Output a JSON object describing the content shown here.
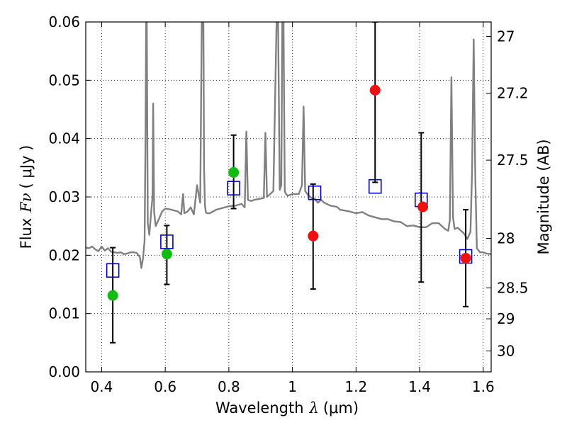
{
  "chart_data": {
    "type": "scatter",
    "xlabel": "Wavelength",
    "xlabel_symbol": "λ",
    "xlabel_unit": "(μm)",
    "ylabel": "Flux",
    "ylabel_symbol": "Fν",
    "ylabel_unit": "( μJy )",
    "ylabel_right": "Magnitude (AB)",
    "xlim": [
      0.35,
      1.625
    ],
    "ylim": [
      0.0,
      0.06
    ],
    "grid": true,
    "x_ticks": [
      0.4,
      0.6,
      0.8,
      1.0,
      1.2,
      1.4,
      1.6
    ],
    "x_tick_labels": [
      "0.4",
      "0.6",
      "0.8",
      "1",
      "1.2",
      "1.4",
      "1.6"
    ],
    "y_ticks": [
      0.0,
      0.01,
      0.02,
      0.03,
      0.04,
      0.05,
      0.06
    ],
    "y_tick_labels": [
      "0.00",
      "0.01",
      "0.02",
      "0.03",
      "0.04",
      "0.05",
      "0.06"
    ],
    "right_ticks": [
      {
        "label": "27",
        "flux": 0.0575
      },
      {
        "label": "27.2",
        "flux": 0.0478
      },
      {
        "label": "27.5",
        "flux": 0.0363
      },
      {
        "label": "28",
        "flux": 0.0229
      },
      {
        "label": "28.5",
        "flux": 0.0144
      },
      {
        "label": "29",
        "flux": 0.0091
      },
      {
        "label": "30",
        "flux": 0.0036
      }
    ],
    "series": [
      {
        "name": "model-points",
        "marker": "open-square",
        "color": "#0000cc",
        "x": [
          0.435,
          0.605,
          0.815,
          1.07,
          1.26,
          1.405,
          1.545
        ],
        "y": [
          0.0174,
          0.0223,
          0.0315,
          0.0307,
          0.0318,
          0.0295,
          0.0198
        ]
      },
      {
        "name": "detections",
        "marker": "filled-circle",
        "color": "#11bb11",
        "x": [
          0.435,
          0.605,
          0.815
        ],
        "y": [
          0.0131,
          0.0202,
          0.0342
        ]
      },
      {
        "name": "measurements",
        "marker": "filled-circle",
        "color": "#ee1111",
        "x": [
          1.065,
          1.26,
          1.41,
          1.545
        ],
        "y": [
          0.0233,
          0.0483,
          0.0283,
          0.0195
        ]
      }
    ],
    "error_bars": [
      {
        "x": 0.435,
        "low": 0.005,
        "high": 0.0213
      },
      {
        "x": 0.605,
        "low": 0.015,
        "high": 0.0251
      },
      {
        "x": 0.815,
        "low": 0.028,
        "high": 0.0406
      },
      {
        "x": 1.065,
        "low": 0.0142,
        "high": 0.0322
      },
      {
        "x": 1.26,
        "low": 0.0325,
        "high": 0.06
      },
      {
        "x": 1.405,
        "low": 0.0154,
        "high": 0.041
      },
      {
        "x": 1.545,
        "low": 0.0112,
        "high": 0.0278
      }
    ],
    "spectrum": {
      "color": "#808080",
      "x": [
        0.35,
        0.36,
        0.37,
        0.38,
        0.39,
        0.4,
        0.41,
        0.42,
        0.43,
        0.44,
        0.45,
        0.46,
        0.47,
        0.48,
        0.49,
        0.5,
        0.51,
        0.52,
        0.525,
        0.53,
        0.535,
        0.538,
        0.54,
        0.542,
        0.545,
        0.55,
        0.555,
        0.56,
        0.562,
        0.565,
        0.57,
        0.58,
        0.59,
        0.6,
        0.62,
        0.64,
        0.65,
        0.656,
        0.66,
        0.67,
        0.68,
        0.69,
        0.7,
        0.71,
        0.715,
        0.72,
        0.722,
        0.725,
        0.728,
        0.732,
        0.74,
        0.75,
        0.76,
        0.78,
        0.8,
        0.82,
        0.84,
        0.85,
        0.855,
        0.86,
        0.87,
        0.88,
        0.89,
        0.9,
        0.91,
        0.915,
        0.92,
        0.93,
        0.94,
        0.95,
        0.955,
        0.96,
        0.965,
        0.968,
        0.972,
        0.976,
        0.98,
        0.985,
        0.99,
        1.0,
        1.02,
        1.03,
        1.035,
        1.04,
        1.05,
        1.06,
        1.07,
        1.08,
        1.09,
        1.1,
        1.12,
        1.14,
        1.15,
        1.16,
        1.18,
        1.2,
        1.22,
        1.24,
        1.26,
        1.28,
        1.3,
        1.32,
        1.34,
        1.36,
        1.38,
        1.4,
        1.42,
        1.44,
        1.46,
        1.48,
        1.49,
        1.495,
        1.5,
        1.505,
        1.51,
        1.52,
        1.53,
        1.54,
        1.55,
        1.56,
        1.565,
        1.57,
        1.575,
        1.58,
        1.59,
        1.6,
        1.61,
        1.625
      ],
      "y": [
        0.0213,
        0.0212,
        0.0215,
        0.021,
        0.0207,
        0.0215,
        0.0208,
        0.0212,
        0.0206,
        0.0205,
        0.0204,
        0.0205,
        0.0202,
        0.0203,
        0.0205,
        0.0205,
        0.0204,
        0.0197,
        0.0178,
        0.0195,
        0.0225,
        0.04,
        0.06,
        0.06,
        0.0255,
        0.0235,
        0.027,
        0.03,
        0.046,
        0.0274,
        0.025,
        0.0262,
        0.0275,
        0.028,
        0.0278,
        0.0275,
        0.027,
        0.0305,
        0.0272,
        0.0275,
        0.0282,
        0.027,
        0.032,
        0.029,
        0.06,
        0.06,
        0.035,
        0.0285,
        0.0273,
        0.0272,
        0.0272,
        0.0275,
        0.0278,
        0.0281,
        0.0284,
        0.0285,
        0.0288,
        0.0282,
        0.0412,
        0.0295,
        0.0293,
        0.0295,
        0.0296,
        0.0297,
        0.0298,
        0.041,
        0.03,
        0.0305,
        0.031,
        0.06,
        0.06,
        0.0312,
        0.032,
        0.06,
        0.06,
        0.031,
        0.0305,
        0.0302,
        0.0303,
        0.0305,
        0.0305,
        0.032,
        0.0455,
        0.031,
        0.0303,
        0.0298,
        0.0297,
        0.029,
        0.0295,
        0.029,
        0.0285,
        0.0283,
        0.0278,
        0.0277,
        0.0275,
        0.0272,
        0.0274,
        0.0268,
        0.0265,
        0.0262,
        0.0262,
        0.0258,
        0.0257,
        0.025,
        0.0251,
        0.0248,
        0.0248,
        0.0255,
        0.0255,
        0.0245,
        0.0242,
        0.026,
        0.0505,
        0.0265,
        0.0245,
        0.0247,
        0.0242,
        0.0237,
        0.0228,
        0.024,
        0.0345,
        0.057,
        0.0335,
        0.0212,
        0.0205,
        0.0205,
        0.0203,
        0.0202
      ]
    }
  }
}
